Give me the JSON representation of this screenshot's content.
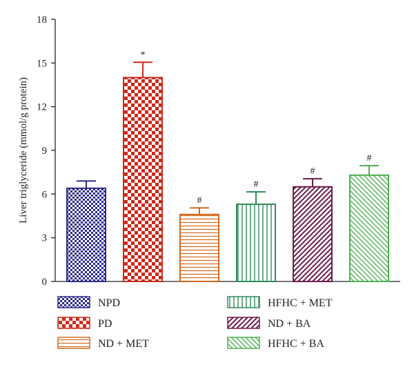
{
  "chart_data": {
    "type": "bar",
    "title": "",
    "xlabel": "",
    "ylabel": "Liver triglyceride (mmol/g protein)",
    "ylim": [
      0,
      18
    ],
    "yticks": [
      0,
      3,
      6,
      9,
      12,
      15,
      18
    ],
    "grid": false,
    "legend_position": "bottom",
    "categories": [
      "NPD",
      "PD",
      "ND + MET",
      "HFHC + MET",
      "ND + BA",
      "HFHC + BA"
    ],
    "values": [
      6.4,
      14.0,
      4.6,
      5.3,
      6.5,
      7.3
    ],
    "errors": [
      0.5,
      1.05,
      0.45,
      0.85,
      0.55,
      0.65
    ],
    "annotations": [
      "",
      "*",
      "#",
      "#",
      "#",
      "#"
    ],
    "series_styles": [
      {
        "color": "#2b2b8c",
        "pattern": "checker-small"
      },
      {
        "color": "#cc2a1a",
        "pattern": "checker-large"
      },
      {
        "color": "#d2691e",
        "pattern": "horizontal-lines"
      },
      {
        "color": "#2e8b57",
        "pattern": "vertical-lines"
      },
      {
        "color": "#6b1a4a",
        "pattern": "diagonal-up"
      },
      {
        "color": "#4caf50",
        "pattern": "diagonal-down"
      }
    ]
  }
}
